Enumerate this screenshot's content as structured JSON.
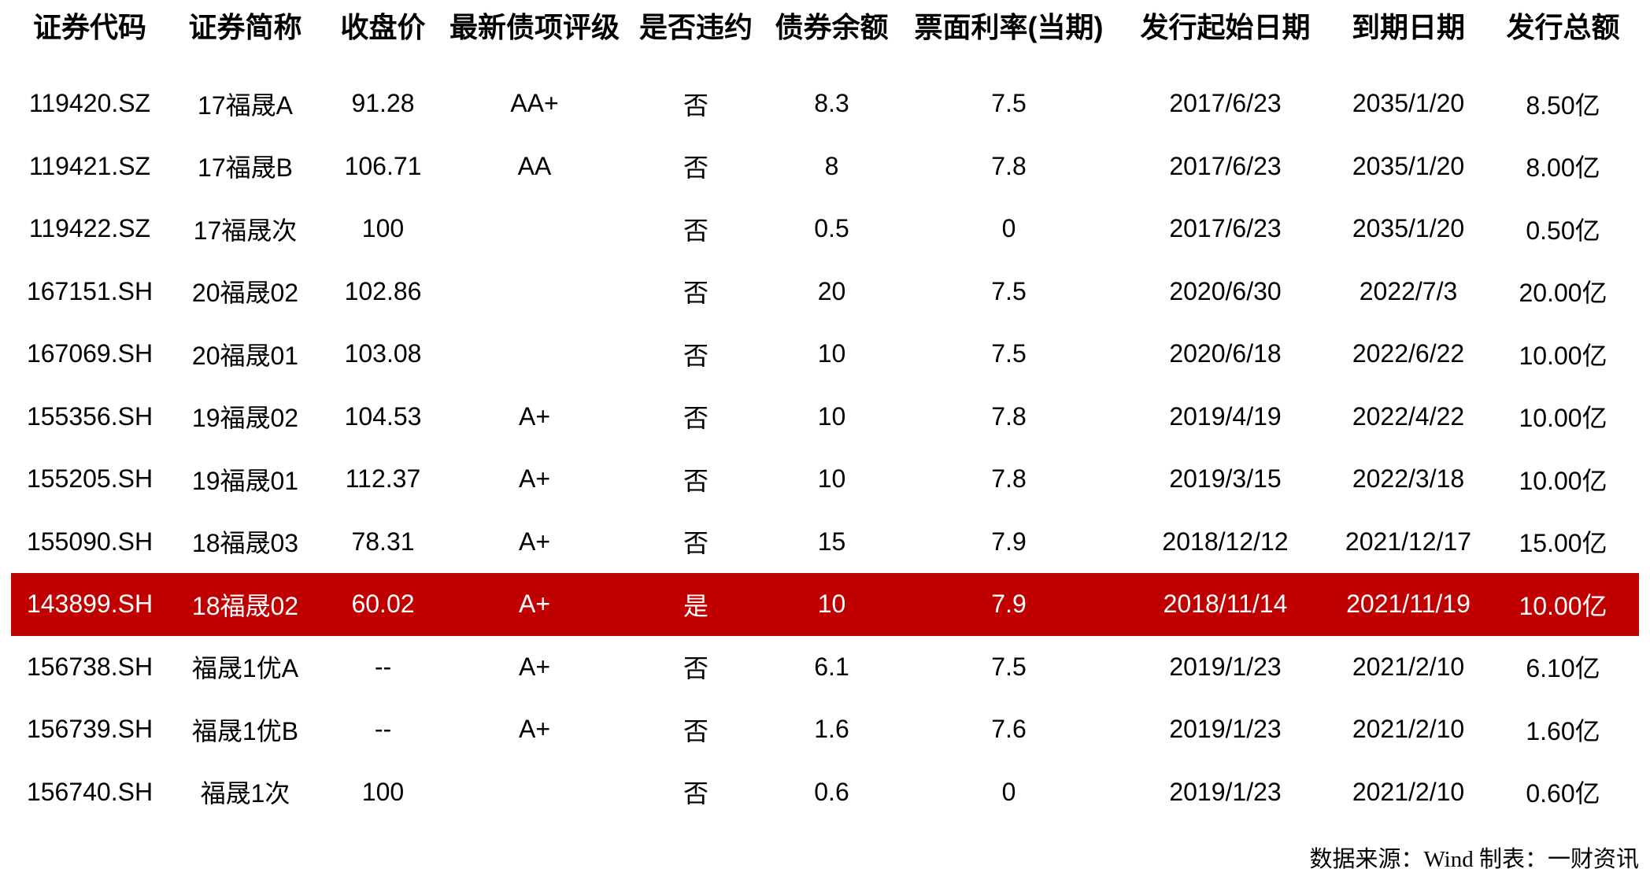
{
  "table": {
    "columns": [
      {
        "key": "code",
        "label": "证券代码"
      },
      {
        "key": "name",
        "label": "证券简称"
      },
      {
        "key": "close",
        "label": "收盘价"
      },
      {
        "key": "rating",
        "label": "最新债项评级"
      },
      {
        "key": "defaulted",
        "label": "是否违约"
      },
      {
        "key": "balance",
        "label": "债券余额"
      },
      {
        "key": "coupon",
        "label": "票面利率(当期)"
      },
      {
        "key": "issue_start",
        "label": "发行起始日期"
      },
      {
        "key": "maturity",
        "label": "到期日期"
      },
      {
        "key": "total",
        "label": "发行总额"
      }
    ],
    "rows": [
      {
        "code": "119420.SZ",
        "name": "17福晟A",
        "close": "91.28",
        "rating": "AA+",
        "defaulted": "否",
        "balance": "8.3",
        "coupon": "7.5",
        "issue_start": "2017/6/23",
        "maturity": "2035/1/20",
        "total": "8.50亿",
        "highlighted": false
      },
      {
        "code": "119421.SZ",
        "name": "17福晟B",
        "close": "106.71",
        "rating": "AA",
        "defaulted": "否",
        "balance": "8",
        "coupon": "7.8",
        "issue_start": "2017/6/23",
        "maturity": "2035/1/20",
        "total": "8.00亿",
        "highlighted": false
      },
      {
        "code": "119422.SZ",
        "name": "17福晟次",
        "close": "100",
        "rating": "",
        "defaulted": "否",
        "balance": "0.5",
        "coupon": "0",
        "issue_start": "2017/6/23",
        "maturity": "2035/1/20",
        "total": "0.50亿",
        "highlighted": false
      },
      {
        "code": "167151.SH",
        "name": "20福晟02",
        "close": "102.86",
        "rating": "",
        "defaulted": "否",
        "balance": "20",
        "coupon": "7.5",
        "issue_start": "2020/6/30",
        "maturity": "2022/7/3",
        "total": "20.00亿",
        "highlighted": false
      },
      {
        "code": "167069.SH",
        "name": "20福晟01",
        "close": "103.08",
        "rating": "",
        "defaulted": "否",
        "balance": "10",
        "coupon": "7.5",
        "issue_start": "2020/6/18",
        "maturity": "2022/6/22",
        "total": "10.00亿",
        "highlighted": false
      },
      {
        "code": "155356.SH",
        "name": "19福晟02",
        "close": "104.53",
        "rating": "A+",
        "defaulted": "否",
        "balance": "10",
        "coupon": "7.8",
        "issue_start": "2019/4/19",
        "maturity": "2022/4/22",
        "total": "10.00亿",
        "highlighted": false
      },
      {
        "code": "155205.SH",
        "name": "19福晟01",
        "close": "112.37",
        "rating": "A+",
        "defaulted": "否",
        "balance": "10",
        "coupon": "7.8",
        "issue_start": "2019/3/15",
        "maturity": "2022/3/18",
        "total": "10.00亿",
        "highlighted": false
      },
      {
        "code": "155090.SH",
        "name": "18福晟03",
        "close": "78.31",
        "rating": "A+",
        "defaulted": "否",
        "balance": "15",
        "coupon": "7.9",
        "issue_start": "2018/12/12",
        "maturity": "2021/12/17",
        "total": "15.00亿",
        "highlighted": false
      },
      {
        "code": "143899.SH",
        "name": "18福晟02",
        "close": "60.02",
        "rating": "A+",
        "defaulted": "是",
        "balance": "10",
        "coupon": "7.9",
        "issue_start": "2018/11/14",
        "maturity": "2021/11/19",
        "total": "10.00亿",
        "highlighted": true
      },
      {
        "code": "156738.SH",
        "name": "福晟1优A",
        "close": "--",
        "rating": "A+",
        "defaulted": "否",
        "balance": "6.1",
        "coupon": "7.5",
        "issue_start": "2019/1/23",
        "maturity": "2021/2/10",
        "total": "6.10亿",
        "highlighted": false
      },
      {
        "code": "156739.SH",
        "name": "福晟1优B",
        "close": "--",
        "rating": "A+",
        "defaulted": "否",
        "balance": "1.6",
        "coupon": "7.6",
        "issue_start": "2019/1/23",
        "maturity": "2021/2/10",
        "total": "1.60亿",
        "highlighted": false
      },
      {
        "code": "156740.SH",
        "name": "福晟1次",
        "close": "100",
        "rating": "",
        "defaulted": "否",
        "balance": "0.6",
        "coupon": "0",
        "issue_start": "2019/1/23",
        "maturity": "2021/2/10",
        "total": "0.60亿",
        "highlighted": false
      }
    ]
  },
  "footer": {
    "source_note": "数据来源：Wind 制表：一财资讯"
  },
  "colors": {
    "highlight_bg": "#c00000",
    "highlight_text": "#ffffff",
    "text": "#000000",
    "background": "#ffffff"
  }
}
